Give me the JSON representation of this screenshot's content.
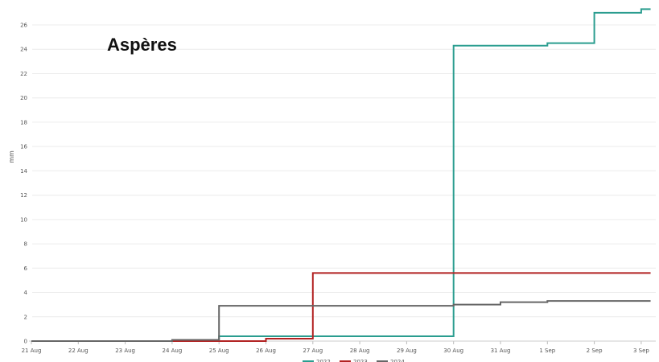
{
  "chart_data": {
    "type": "line",
    "title": "Aspères",
    "xlabel": "",
    "ylabel": "mm",
    "x": [
      "21 Aug",
      "22 Aug",
      "23 Aug",
      "24 Aug",
      "25 Aug",
      "26 Aug",
      "27 Aug",
      "28 Aug",
      "29 Aug",
      "30 Aug",
      "31 Aug",
      "1 Sep",
      "2 Sep",
      "3 Sep"
    ],
    "y_ticks": [
      0,
      2,
      4,
      6,
      8,
      10,
      12,
      14,
      16,
      18,
      20,
      22,
      24,
      26
    ],
    "ylim": [
      0,
      27.5
    ],
    "grid": true,
    "legend_position": "bottom",
    "series": [
      {
        "name": "2022",
        "color": "#2a9d8f",
        "points": [
          [
            0,
            0
          ],
          [
            1,
            0
          ],
          [
            2,
            0
          ],
          [
            3,
            0
          ],
          [
            4,
            0.4
          ],
          [
            5,
            0.4
          ],
          [
            6,
            0.4
          ],
          [
            7,
            0.4
          ],
          [
            8,
            0.4
          ],
          [
            9,
            24.3
          ],
          [
            10,
            24.3
          ],
          [
            11,
            24.5
          ],
          [
            12,
            27.0
          ],
          [
            13,
            27.3
          ],
          [
            13.2,
            27.3
          ]
        ]
      },
      {
        "name": "2023",
        "color": "#b22222",
        "points": [
          [
            0,
            0
          ],
          [
            1,
            0
          ],
          [
            2,
            0
          ],
          [
            3,
            0
          ],
          [
            4,
            0
          ],
          [
            5,
            0.2
          ],
          [
            6,
            5.6
          ],
          [
            7,
            5.6
          ],
          [
            8,
            5.6
          ],
          [
            9,
            5.6
          ],
          [
            10,
            5.6
          ],
          [
            11,
            5.6
          ],
          [
            12,
            5.6
          ],
          [
            13,
            5.6
          ],
          [
            13.2,
            5.6
          ]
        ]
      },
      {
        "name": "2024",
        "color": "#666666",
        "points": [
          [
            0,
            0
          ],
          [
            1,
            0
          ],
          [
            2,
            0
          ],
          [
            3,
            0.1
          ],
          [
            4,
            2.9
          ],
          [
            5,
            2.9
          ],
          [
            6,
            2.9
          ],
          [
            7,
            2.9
          ],
          [
            8,
            2.9
          ],
          [
            9,
            3.0
          ],
          [
            10,
            3.2
          ],
          [
            11,
            3.3
          ],
          [
            12,
            3.3
          ],
          [
            13,
            3.3
          ],
          [
            13.2,
            3.3
          ]
        ]
      }
    ]
  }
}
